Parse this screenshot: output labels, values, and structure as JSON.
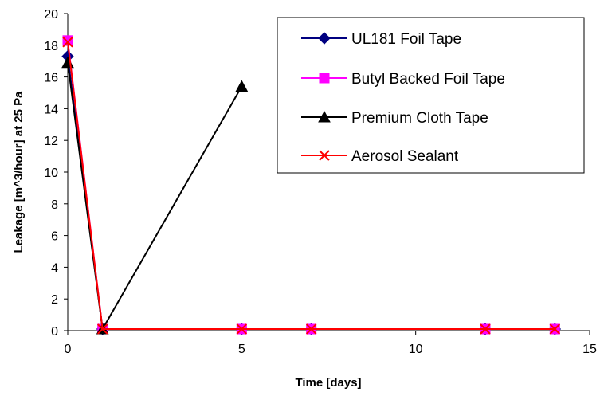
{
  "chart_data": {
    "type": "line",
    "xlabel": "Time [days]",
    "ylabel": "Leakage [m^3/hour] at 25 Pa",
    "xlim": [
      0,
      15
    ],
    "ylim": [
      0,
      20
    ],
    "x_ticks": [
      0,
      5,
      10,
      15
    ],
    "y_ticks": [
      0,
      2,
      4,
      6,
      8,
      10,
      12,
      14,
      16,
      18,
      20
    ],
    "grid": false,
    "legend_position": "top-right",
    "series": [
      {
        "name": "UL181 Foil Tape",
        "color": "#000080",
        "marker": "diamond",
        "x": [
          0,
          1,
          5,
          7,
          12,
          14
        ],
        "y": [
          17.3,
          0.1,
          0.1,
          0.1,
          0.1,
          0.1
        ]
      },
      {
        "name": "Butyl Backed Foil Tape",
        "color": "#FF00FF",
        "marker": "square",
        "x": [
          0,
          1,
          5,
          7,
          12,
          14
        ],
        "y": [
          18.3,
          0.1,
          0.1,
          0.1,
          0.1,
          0.1
        ]
      },
      {
        "name": "Premium Cloth Tape",
        "color": "#000000",
        "marker": "triangle",
        "x": [
          0,
          1,
          5
        ],
        "y": [
          16.9,
          0.1,
          15.4
        ]
      },
      {
        "name": "Aerosol Sealant",
        "color": "#FF0000",
        "marker": "x",
        "x": [
          0,
          1,
          5,
          7,
          12,
          14
        ],
        "y": [
          18.2,
          0.1,
          0.1,
          0.1,
          0.1,
          0.1
        ]
      }
    ]
  }
}
